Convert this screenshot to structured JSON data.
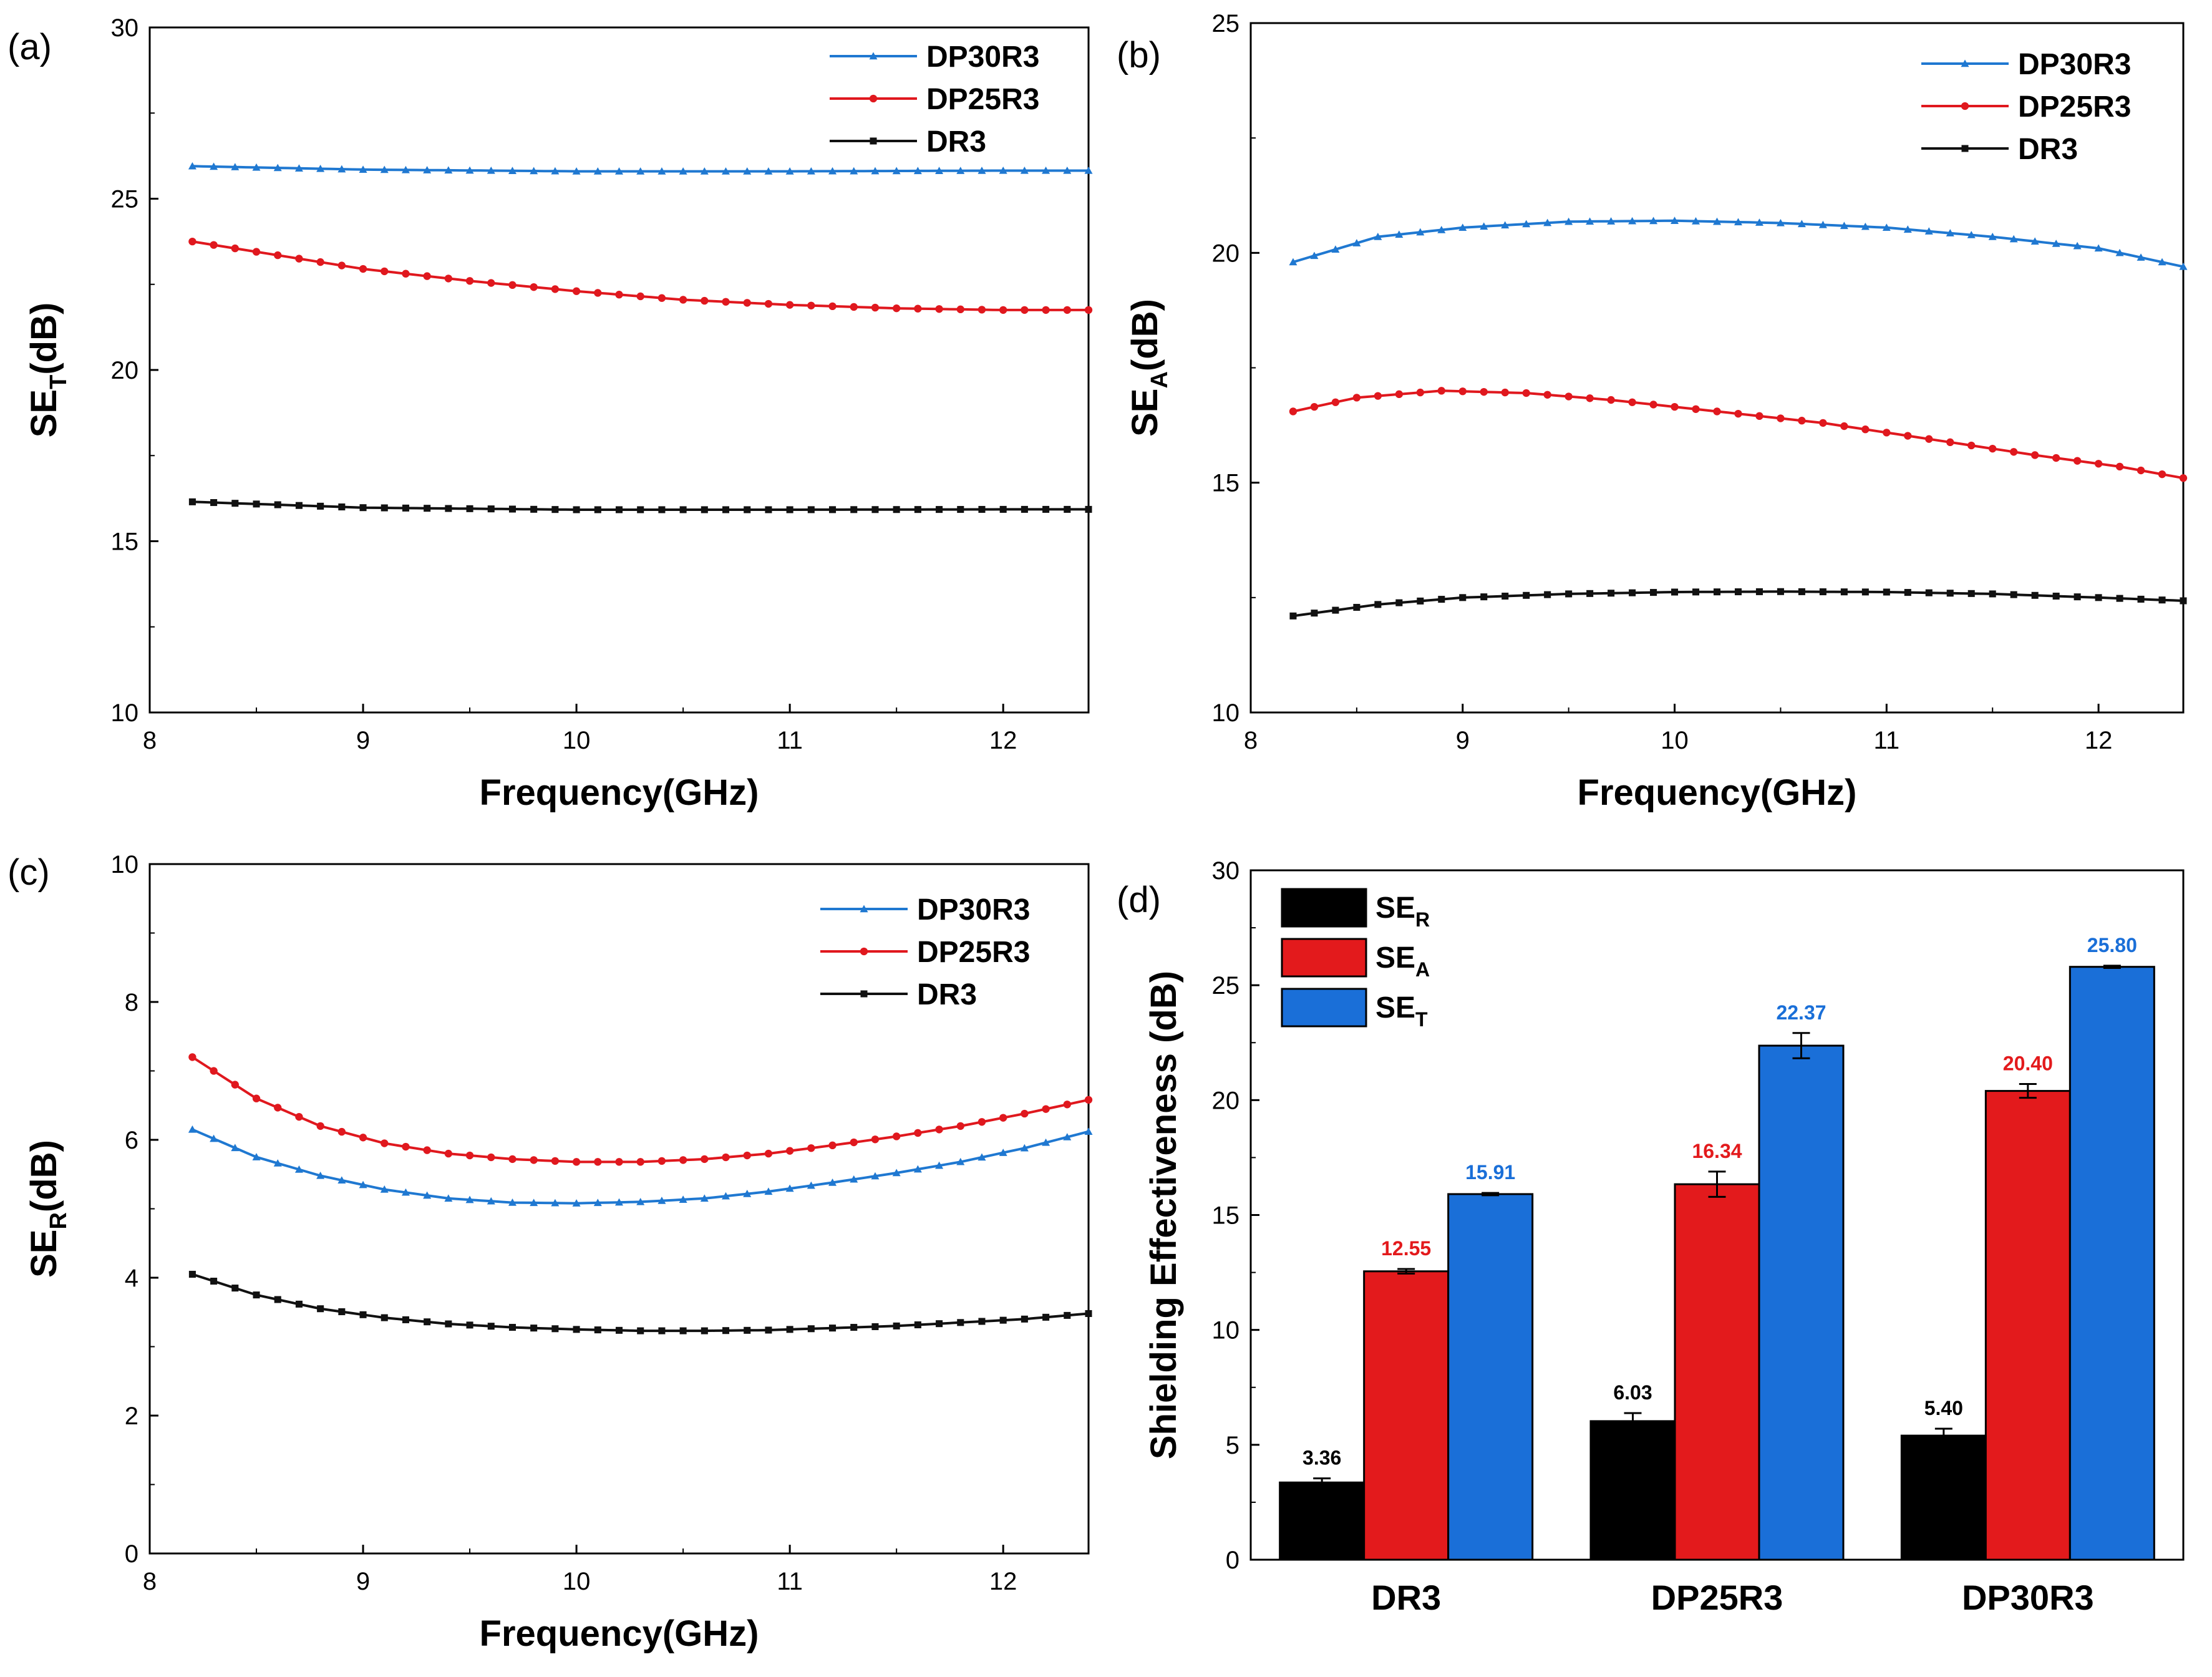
{
  "colors": {
    "DP30R3": "#1f78d1",
    "DP25R3": "#e0181e",
    "DR3": "#111111",
    "bar_R": "#000000",
    "bar_A": "#e31a1c",
    "bar_T": "#1a6fd8"
  },
  "chart_data": [
    {
      "id": "a",
      "type": "line",
      "panel_label": "(a)",
      "xlabel": "Frequency(GHz)",
      "ylabel_main": "SE",
      "ylabel_sub": "T",
      "ylabel_unit": "(dB)",
      "xlim": [
        8,
        12.4
      ],
      "ylim": [
        10,
        30
      ],
      "xticks": [
        8,
        9,
        10,
        11,
        12
      ],
      "yticks": [
        10,
        15,
        20,
        25,
        30
      ],
      "legend_position": "top-right",
      "series": [
        {
          "name": "DP30R3",
          "marker": "triangle",
          "x": [
            8.2,
            9,
            10,
            11,
            12,
            12.4
          ],
          "y": [
            25.95,
            25.85,
            25.8,
            25.8,
            25.82,
            25.82
          ]
        },
        {
          "name": "DP25R3",
          "marker": "circle",
          "x": [
            8.2,
            8.6,
            9,
            9.5,
            10,
            10.5,
            11,
            11.5,
            12,
            12.4
          ],
          "y": [
            23.75,
            23.35,
            22.95,
            22.6,
            22.3,
            22.05,
            21.9,
            21.8,
            21.75,
            21.75
          ]
        },
        {
          "name": "DR3",
          "marker": "square",
          "x": [
            8.2,
            9,
            10,
            11,
            12,
            12.4
          ],
          "y": [
            16.15,
            15.98,
            15.92,
            15.92,
            15.93,
            15.93
          ]
        }
      ]
    },
    {
      "id": "b",
      "type": "line",
      "panel_label": "(b)",
      "xlabel": "Frequency(GHz)",
      "ylabel_main": "SE",
      "ylabel_sub": "A",
      "ylabel_unit": "(dB)",
      "xlim": [
        8,
        12.4
      ],
      "ylim": [
        10,
        25
      ],
      "xticks": [
        8,
        9,
        10,
        11,
        12
      ],
      "yticks": [
        10,
        15,
        20,
        25
      ],
      "legend_position": "top-right",
      "series": [
        {
          "name": "DP30R3",
          "marker": "triangle",
          "x": [
            8.2,
            8.6,
            9,
            9.5,
            10,
            10.5,
            11,
            11.5,
            12,
            12.4
          ],
          "y": [
            19.8,
            20.35,
            20.55,
            20.68,
            20.7,
            20.65,
            20.55,
            20.35,
            20.1,
            19.7
          ]
        },
        {
          "name": "DP25R3",
          "marker": "circle",
          "x": [
            8.2,
            8.5,
            8.9,
            9.3,
            9.7,
            10.2,
            10.7,
            11.2,
            11.7,
            12.1,
            12.4
          ],
          "y": [
            16.55,
            16.85,
            17.0,
            16.95,
            16.8,
            16.55,
            16.3,
            15.95,
            15.6,
            15.35,
            15.1
          ]
        },
        {
          "name": "DR3",
          "marker": "square",
          "x": [
            8.2,
            8.6,
            9,
            9.5,
            10,
            10.5,
            11,
            11.5,
            12,
            12.4
          ],
          "y": [
            12.1,
            12.35,
            12.5,
            12.58,
            12.62,
            12.63,
            12.62,
            12.58,
            12.5,
            12.43
          ]
        }
      ]
    },
    {
      "id": "c",
      "type": "line",
      "panel_label": "(c)",
      "xlabel": "Frequency(GHz)",
      "ylabel_main": "SE",
      "ylabel_sub": "R",
      "ylabel_unit": "(dB)",
      "xlim": [
        8,
        12.4
      ],
      "ylim": [
        0,
        10
      ],
      "xticks": [
        8,
        9,
        10,
        11,
        12
      ],
      "yticks": [
        0,
        2,
        4,
        6,
        8,
        10
      ],
      "legend_position": "top-right",
      "series": [
        {
          "name": "DP30R3",
          "marker": "triangle",
          "x": [
            8.2,
            8.5,
            8.8,
            9.1,
            9.4,
            9.7,
            10,
            10.3,
            10.6,
            10.9,
            11.2,
            11.5,
            11.8,
            12.1,
            12.4
          ],
          "y": [
            6.15,
            5.75,
            5.48,
            5.28,
            5.15,
            5.09,
            5.08,
            5.1,
            5.15,
            5.25,
            5.38,
            5.52,
            5.68,
            5.88,
            6.12
          ]
        },
        {
          "name": "DP25R3",
          "marker": "circle",
          "x": [
            8.2,
            8.5,
            8.8,
            9.1,
            9.4,
            9.7,
            10,
            10.3,
            10.6,
            10.9,
            11.2,
            11.5,
            11.8,
            12.1,
            12.4
          ],
          "y": [
            7.2,
            6.6,
            6.2,
            5.95,
            5.8,
            5.72,
            5.68,
            5.68,
            5.72,
            5.8,
            5.92,
            6.05,
            6.2,
            6.38,
            6.58
          ]
        },
        {
          "name": "DR3",
          "marker": "square",
          "x": [
            8.2,
            8.5,
            8.8,
            9.1,
            9.4,
            9.7,
            10,
            10.3,
            10.6,
            10.9,
            11.2,
            11.5,
            11.8,
            12.1,
            12.4
          ],
          "y": [
            4.05,
            3.75,
            3.55,
            3.42,
            3.33,
            3.28,
            3.25,
            3.23,
            3.23,
            3.24,
            3.27,
            3.3,
            3.35,
            3.4,
            3.48
          ]
        }
      ]
    },
    {
      "id": "d",
      "type": "bar",
      "panel_label": "(d)",
      "ylabel": "Shielding Effectiveness (dB)",
      "ylim": [
        0,
        30
      ],
      "yticks": [
        0,
        5,
        10,
        15,
        20,
        25,
        30
      ],
      "categories": [
        "DR3",
        "DP25R3",
        "DP30R3"
      ],
      "legend_position": "top-left",
      "series": [
        {
          "name": "SE",
          "sub": "R",
          "values": [
            3.36,
            6.03,
            5.4
          ],
          "labels": [
            "3.36",
            "6.03",
            "5.40"
          ],
          "errors": [
            0.18,
            0.35,
            0.3
          ]
        },
        {
          "name": "SE",
          "sub": "A",
          "values": [
            12.55,
            16.34,
            20.4
          ],
          "labels": [
            "12.55",
            "16.34",
            "20.40"
          ],
          "errors": [
            0.1,
            0.55,
            0.3
          ]
        },
        {
          "name": "SE",
          "sub": "T",
          "values": [
            15.91,
            22.37,
            25.8
          ],
          "labels": [
            "15.91",
            "22.37",
            "25.80"
          ],
          "errors": [
            0.05,
            0.55,
            0.05
          ]
        }
      ]
    }
  ]
}
